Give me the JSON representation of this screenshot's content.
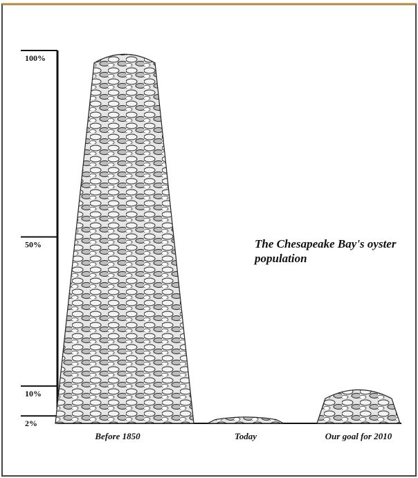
{
  "chart_data": {
    "type": "bar",
    "title": "The Chesapeake Bay's oyster population",
    "categories": [
      "Before 1850",
      "Today",
      "Our goal for 2010"
    ],
    "values": [
      100,
      2,
      10
    ],
    "color": "#d9d9d9",
    "ylim": [
      0,
      100
    ],
    "yticks": [
      {
        "value": 2,
        "label": "2%"
      },
      {
        "value": 10,
        "label": "10%"
      },
      {
        "value": 50,
        "label": "50%"
      },
      {
        "value": 100,
        "label": "100%"
      }
    ]
  }
}
